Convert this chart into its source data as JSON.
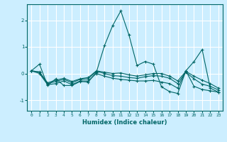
{
  "xlabel": "Humidex (Indice chaleur)",
  "ylabel": "",
  "bg_color": "#cceeff",
  "grid_color": "#ffffff",
  "line_color": "#006666",
  "xlim": [
    -0.5,
    23.5
  ],
  "ylim": [
    -1.4,
    2.6
  ],
  "yticks": [
    -1,
    0,
    1,
    2
  ],
  "xtick_labels": [
    "0",
    "1",
    "2",
    "3",
    "4",
    "5",
    "6",
    "7",
    "8",
    "9",
    "10",
    "11",
    "12",
    "13",
    "14",
    "15",
    "16",
    "17",
    "18",
    "19",
    "20",
    "21",
    "22",
    "23"
  ],
  "series": [
    [
      0.1,
      0.35,
      -0.45,
      -0.2,
      -0.45,
      -0.45,
      -0.3,
      -0.32,
      0.05,
      1.05,
      1.8,
      2.35,
      1.45,
      0.3,
      0.45,
      0.35,
      -0.5,
      -0.68,
      -0.75,
      0.1,
      0.45,
      0.9,
      -0.55,
      -0.7
    ],
    [
      0.1,
      0.0,
      -0.42,
      -0.38,
      -0.28,
      -0.42,
      -0.28,
      -0.28,
      0.0,
      -0.1,
      -0.18,
      -0.22,
      -0.25,
      -0.28,
      -0.28,
      -0.26,
      -0.32,
      -0.38,
      -0.55,
      0.1,
      -0.48,
      -0.6,
      -0.65,
      -0.7
    ],
    [
      0.1,
      0.05,
      -0.38,
      -0.3,
      -0.22,
      -0.35,
      -0.22,
      -0.2,
      0.08,
      0.0,
      -0.08,
      -0.1,
      -0.15,
      -0.18,
      -0.12,
      -0.08,
      -0.1,
      -0.18,
      -0.38,
      0.05,
      -0.2,
      -0.4,
      -0.48,
      -0.62
    ],
    [
      0.1,
      0.06,
      -0.35,
      -0.25,
      -0.18,
      -0.3,
      -0.2,
      -0.15,
      0.1,
      0.05,
      0.0,
      0.02,
      -0.05,
      -0.1,
      -0.05,
      0.0,
      0.0,
      -0.1,
      -0.28,
      0.08,
      -0.1,
      -0.25,
      -0.38,
      -0.55
    ]
  ]
}
